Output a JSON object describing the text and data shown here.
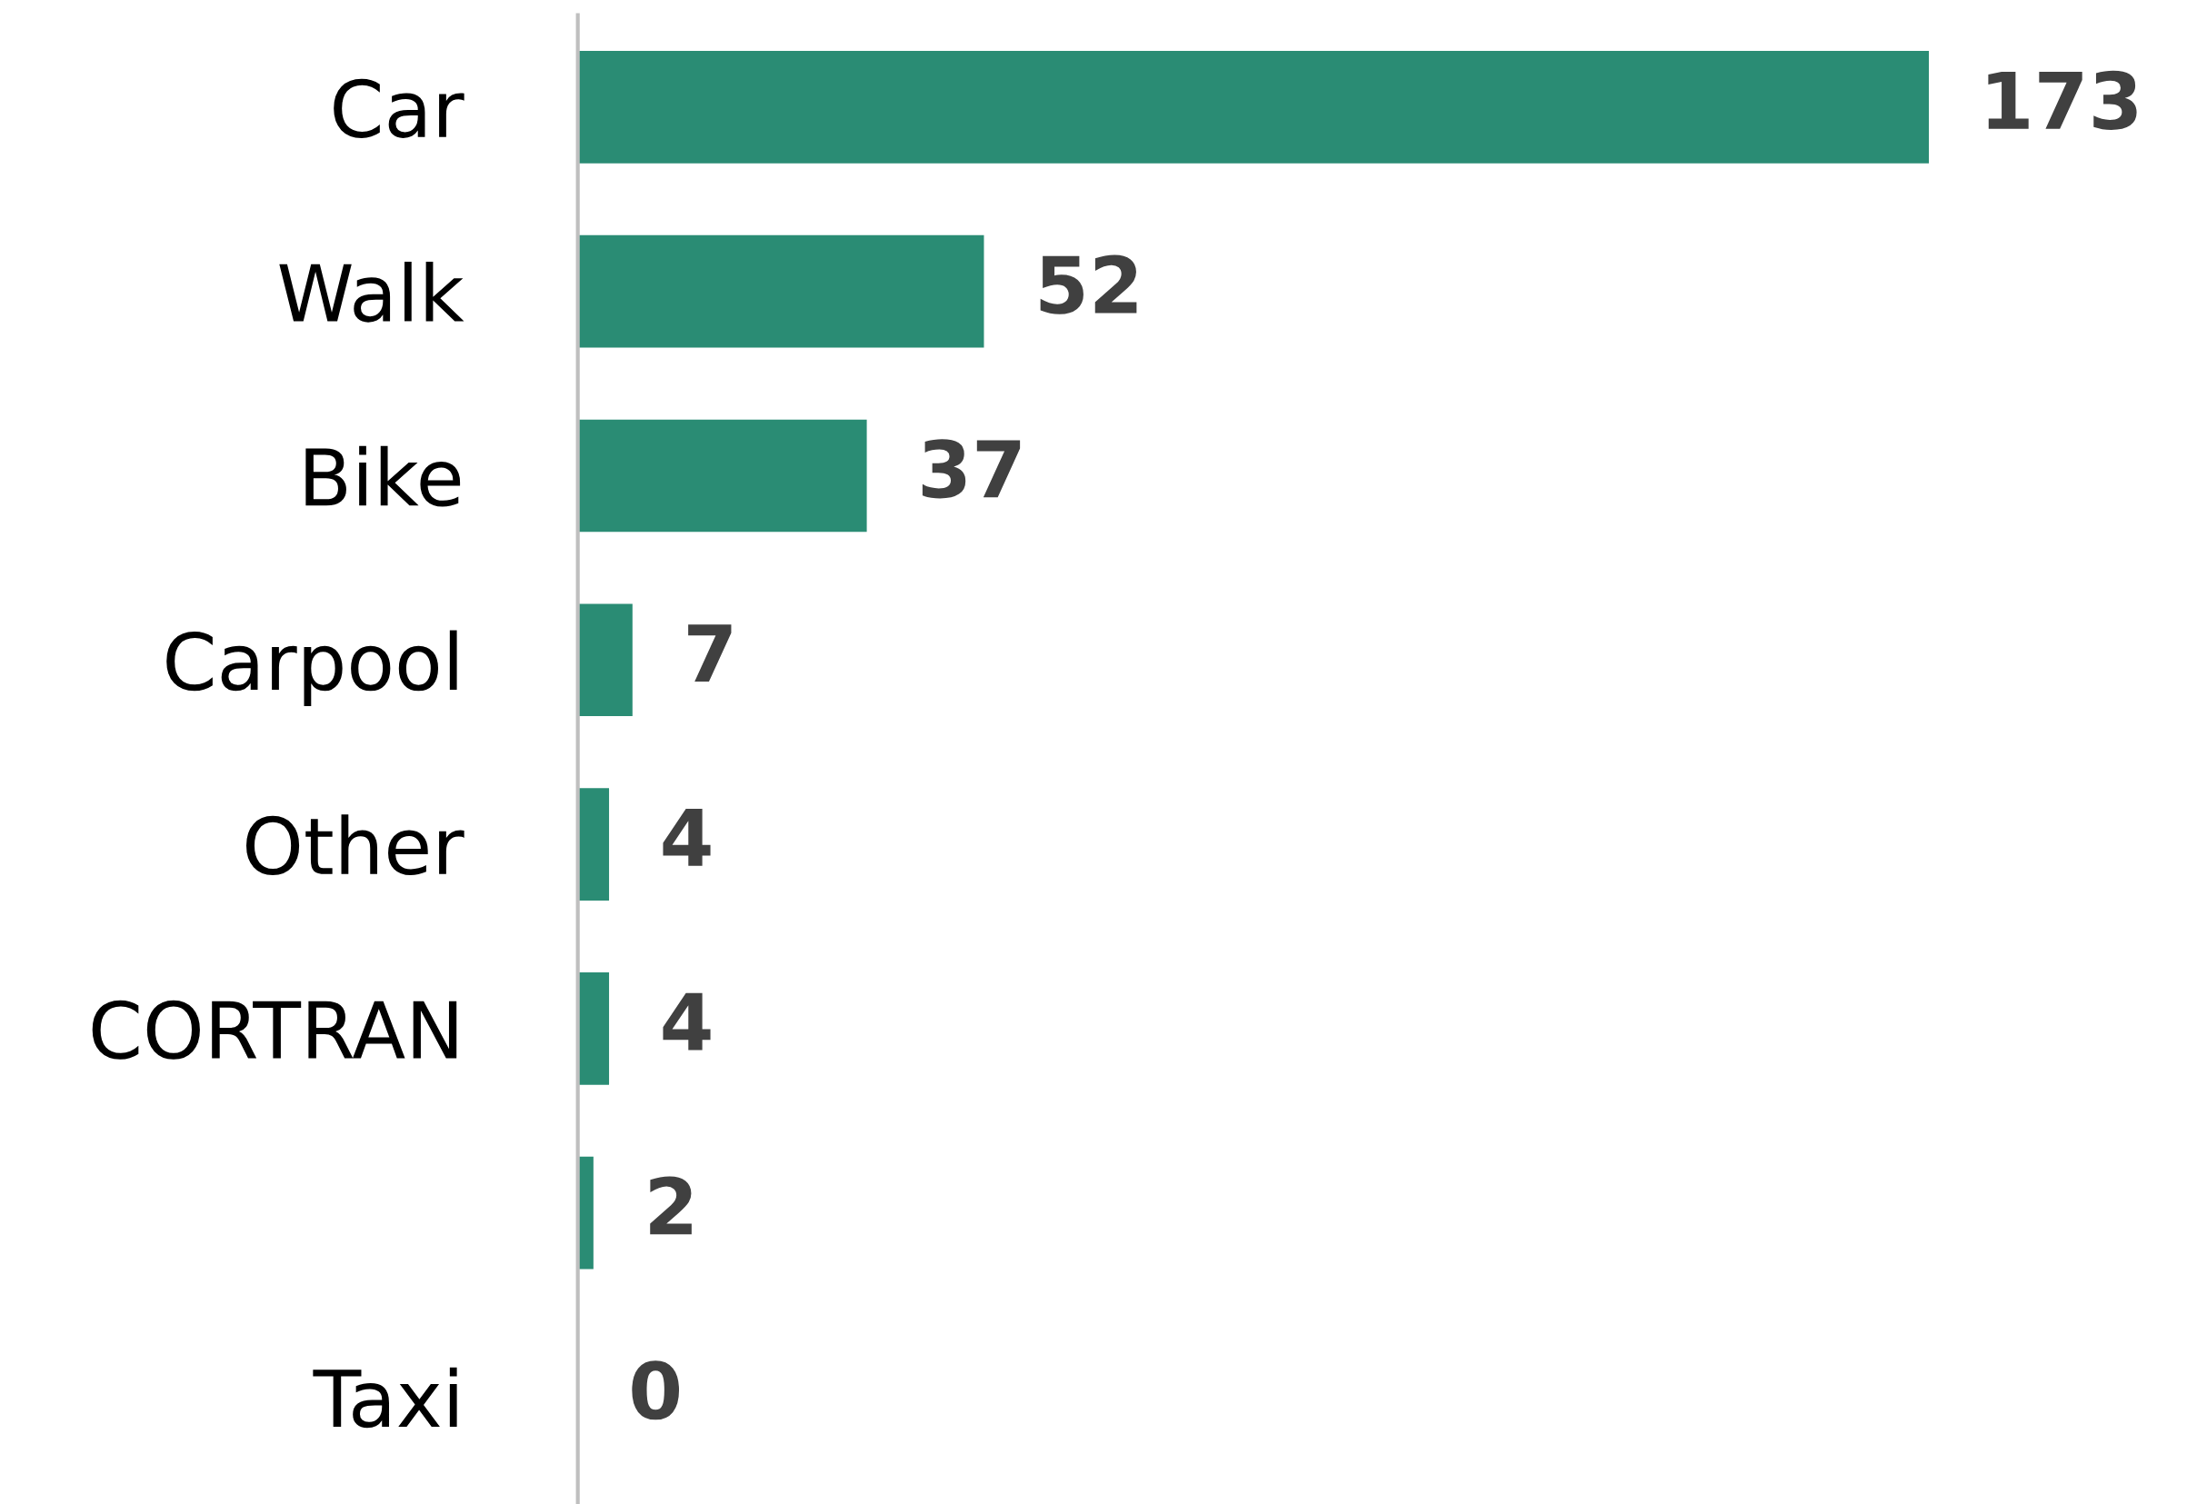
{
  "chart_data": {
    "type": "bar",
    "orientation": "horizontal",
    "categories": [
      "Car",
      "Walk",
      "Bike",
      "Carpool",
      "Other",
      "CORTRAN",
      null,
      "Taxi"
    ],
    "values": [
      173,
      52,
      37,
      7,
      4,
      4,
      2,
      0
    ],
    "color": "#2a8c74",
    "data_labels": true,
    "grid": false
  }
}
